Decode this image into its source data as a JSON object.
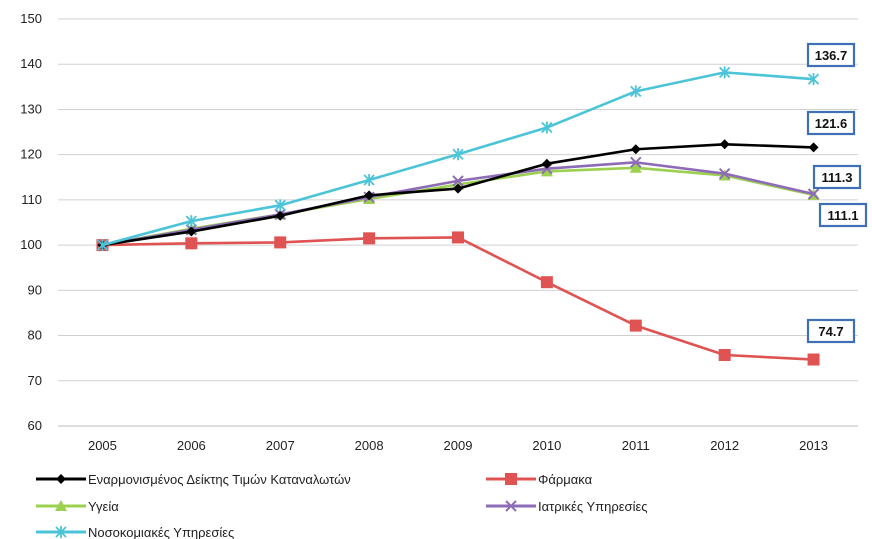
{
  "chart_data": {
    "type": "line",
    "title": "",
    "xlabel": "",
    "ylabel": "",
    "x": [
      "2005",
      "2006",
      "2007",
      "2008",
      "2009",
      "2010",
      "2011",
      "2012",
      "2013"
    ],
    "ylim": [
      60,
      150
    ],
    "yticks": [
      60,
      70,
      80,
      90,
      100,
      110,
      120,
      130,
      140,
      150
    ],
    "grid": "horizontal",
    "legend_position": "bottom",
    "series": [
      {
        "name": "Εναρμονισμένος Δείκτης Τιμών Καταναλωτών",
        "color": "#000000",
        "marker": "diamond",
        "values": [
          100,
          103,
          106.5,
          111,
          112.5,
          118,
          121.2,
          122.3,
          121.6
        ]
      },
      {
        "name": "Φάρμακα",
        "color": "#e05353",
        "marker": "square",
        "values": [
          100,
          100.4,
          100.6,
          101.5,
          101.7,
          91.8,
          82.2,
          75.7,
          74.7
        ]
      },
      {
        "name": "Υγεία",
        "color": "#9bd050",
        "marker": "triangle",
        "values": [
          100,
          103.6,
          106.8,
          110.2,
          113.4,
          116.3,
          117.1,
          115.4,
          111.1
        ]
      },
      {
        "name": "Ιατρικές Υπηρεσίες",
        "color": "#8e6bb7",
        "marker": "x",
        "values": [
          100,
          103.4,
          106.8,
          110.6,
          114.2,
          116.9,
          118.3,
          115.8,
          111.3
        ]
      },
      {
        "name": "Νοσοκομιακές Υπηρεσίες",
        "color": "#4bc4d8",
        "marker": "star",
        "values": [
          100,
          105.3,
          108.8,
          114.4,
          120.1,
          126,
          134,
          138.2,
          136.7
        ]
      }
    ],
    "annotations": [
      {
        "text": "136.7",
        "series": 4,
        "point": 8
      },
      {
        "text": "121.6",
        "series": 0,
        "point": 8
      },
      {
        "text": "111.3",
        "series": 3,
        "point": 8
      },
      {
        "text": "111.1",
        "series": 2,
        "point": 8
      },
      {
        "text": "74.7",
        "series": 1,
        "point": 8
      }
    ]
  }
}
